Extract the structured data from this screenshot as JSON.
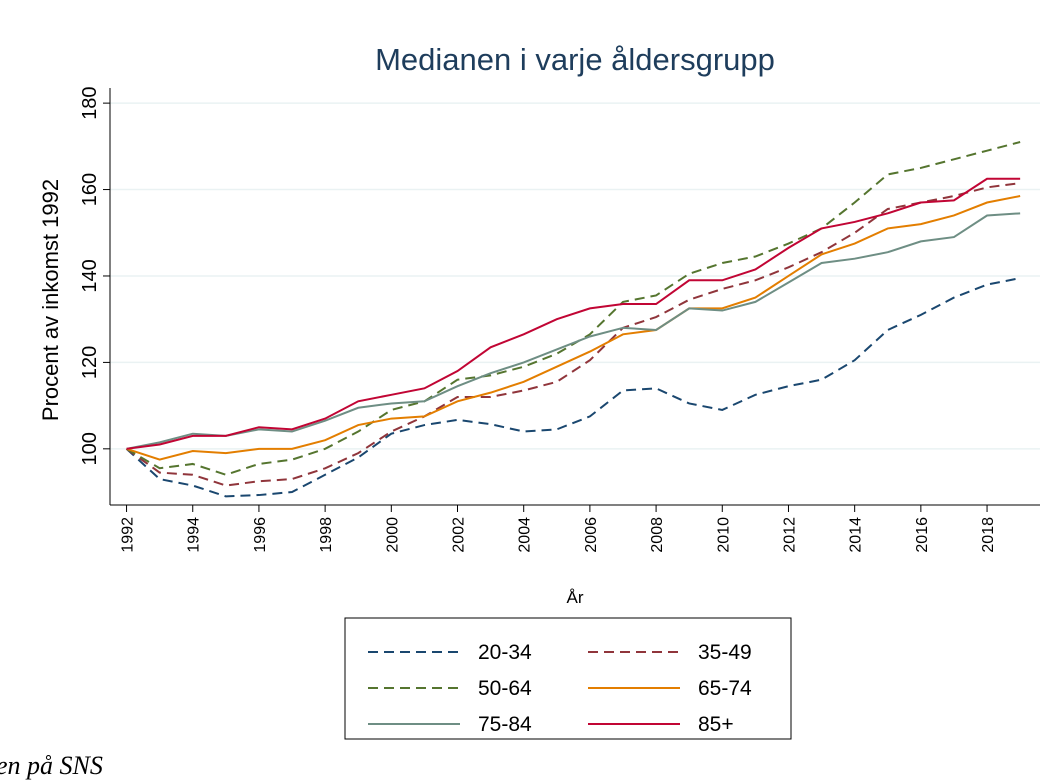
{
  "chart_data": {
    "type": "line",
    "title": "Medianen i varje åldersgrupp",
    "x_label": "År",
    "y_label": "Procent av inkomst 1992",
    "x": [
      1992,
      1993,
      1994,
      1995,
      1996,
      1997,
      1998,
      1999,
      2000,
      2001,
      2002,
      2003,
      2004,
      2005,
      2006,
      2007,
      2008,
      2009,
      2010,
      2011,
      2012,
      2013,
      2014,
      2015,
      2016,
      2017,
      2018,
      2019
    ],
    "series": [
      {
        "name": "20-34",
        "color": "#1a476f",
        "style": "dashed",
        "values": [
          100,
          93,
          91.5,
          89,
          89.3,
          90,
          94,
          98,
          103.5,
          105.5,
          106.7,
          105.7,
          104,
          104.5,
          107.5,
          113.5,
          114,
          110.5,
          109,
          112.5,
          114.5,
          116,
          120.5,
          127.5,
          131,
          135,
          138,
          139.5
        ]
      },
      {
        "name": "35-49",
        "color": "#90353b",
        "style": "dashed",
        "values": [
          100,
          94.5,
          94,
          91.5,
          92.5,
          93,
          95.5,
          99,
          104,
          107.5,
          112,
          112,
          113.5,
          115.5,
          120.5,
          128,
          130.5,
          134.5,
          137,
          139,
          142,
          145.5,
          150,
          155.5,
          157,
          158.5,
          160.5,
          161.5
        ]
      },
      {
        "name": "50-64",
        "color": "#55752f",
        "style": "dashed",
        "values": [
          100,
          95.5,
          96.5,
          94,
          96.5,
          97.5,
          100,
          104,
          109,
          111,
          116,
          117,
          119,
          122,
          126.5,
          134,
          135.5,
          140.5,
          143,
          144.5,
          147.5,
          151,
          157,
          163.5,
          165,
          167,
          169,
          171
        ]
      },
      {
        "name": "65-74",
        "color": "#e37e00",
        "style": "solid",
        "values": [
          100,
          97.5,
          99.5,
          99,
          100,
          100,
          102,
          105.5,
          107,
          107.5,
          111,
          113,
          115.5,
          119,
          122.5,
          126.5,
          127.5,
          132.5,
          132.5,
          135,
          140,
          145,
          147.5,
          151,
          152,
          154,
          157,
          158.5
        ]
      },
      {
        "name": "75-84",
        "color": "#6e8e84",
        "style": "solid",
        "values": [
          100,
          101.5,
          103.5,
          103,
          104.5,
          104,
          106.5,
          109.5,
          110.5,
          111,
          114.5,
          117.5,
          120,
          123,
          126,
          128,
          127.5,
          132.5,
          132,
          134,
          138.5,
          143,
          144,
          145.5,
          148,
          149,
          154,
          154.5
        ]
      },
      {
        "name": "85+",
        "color": "#c10534",
        "style": "solid",
        "values": [
          100,
          101,
          103,
          103,
          105,
          104.5,
          107,
          111,
          112.5,
          114,
          118,
          123.5,
          126.5,
          130,
          132.5,
          133.5,
          133.5,
          139,
          139,
          141.5,
          146.5,
          151,
          152.5,
          154.5,
          157,
          157.5,
          162.5,
          162.5
        ]
      }
    ],
    "xlim": [
      1991.5,
      2019.6
    ],
    "xticks": [
      1992,
      1994,
      1996,
      1998,
      2000,
      2002,
      2004,
      2006,
      2008,
      2010,
      2012,
      2014,
      2016,
      2018
    ],
    "ylim": [
      87,
      183.5
    ],
    "yticks": [
      100,
      120,
      140,
      160,
      180
    ],
    "grid": true,
    "caption": "en på SNS"
  }
}
